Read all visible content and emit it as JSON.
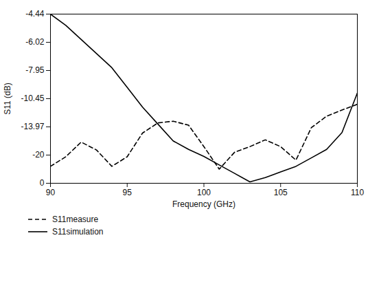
{
  "chart_data": {
    "type": "line",
    "xlabel": "Frequency (GHz)",
    "ylabel": "S11 (dB)",
    "xlim": [
      90,
      110
    ],
    "xticks": [
      90,
      95,
      100,
      105,
      110
    ],
    "ylim": [
      0,
      0.6
    ],
    "yticks": [
      {
        "value": 0.6,
        "label": "-4.44"
      },
      {
        "value": 0.5,
        "label": "-6.02"
      },
      {
        "value": 0.4,
        "label": "-7.95"
      },
      {
        "value": 0.3,
        "label": "-10.45"
      },
      {
        "value": 0.2,
        "label": "-13.97"
      },
      {
        "value": 0.1,
        "label": "-20"
      },
      {
        "value": 0,
        "label": "0"
      }
    ],
    "grid": false,
    "legend": "bottom-left",
    "x": [
      90,
      91,
      92,
      93,
      94,
      95,
      96,
      97,
      98,
      99,
      100,
      101,
      102,
      103,
      104,
      105,
      106,
      107,
      108,
      109,
      110
    ],
    "series": [
      {
        "name": "S11measure",
        "color": "#000000",
        "line_style": "dashed",
        "values": [
          0.06,
          0.094,
          0.146,
          0.118,
          0.06,
          0.094,
          0.178,
          0.214,
          0.22,
          0.206,
          0.13,
          0.05,
          0.11,
          0.13,
          0.154,
          0.13,
          0.082,
          0.197,
          0.238,
          0.26,
          0.28
        ]
      },
      {
        "name": "S11simulation",
        "color": "#000000",
        "line_style": "solid",
        "values": [
          0.6,
          0.56,
          0.51,
          0.46,
          0.41,
          0.34,
          0.27,
          0.21,
          0.15,
          0.12,
          0.095,
          0.065,
          0.035,
          0.005,
          0.02,
          0.04,
          0.06,
          0.09,
          0.12,
          0.18,
          0.32
        ]
      }
    ]
  }
}
